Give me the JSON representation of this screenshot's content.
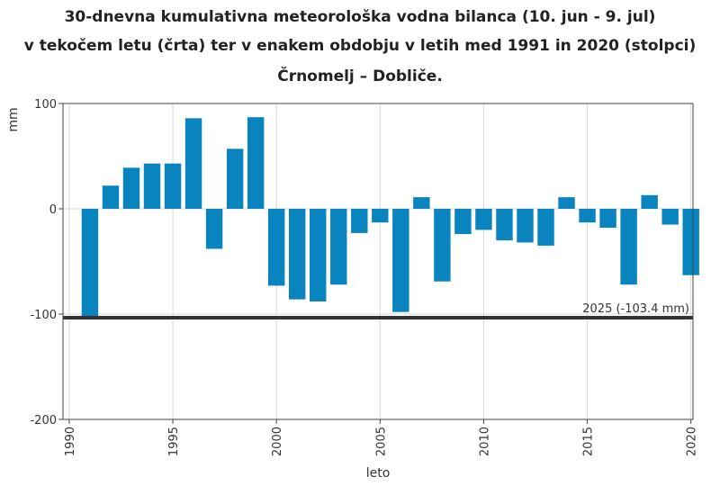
{
  "chart_data": {
    "type": "bar",
    "title": [
      "30-dnevna kumulativna meteorološka vodna bilanca (10. jun - 9. jul)",
      "v tekočem letu (črta) ter v enakem obdobju v letih med 1991 in 2020 (stolpci)",
      "Črnomelj – Dobliče."
    ],
    "xlabel": "leto",
    "ylabel": "mm",
    "xlim": [
      1989.7,
      2020.1
    ],
    "ylim": [
      -200,
      100
    ],
    "x_ticks": [
      "1990",
      "1995",
      "2000",
      "2005",
      "2010",
      "2015",
      "2020"
    ],
    "y_ticks": [
      "100",
      "0",
      "-100",
      "-200"
    ],
    "grid": true,
    "bar_color": "#0a84bf",
    "line_color": "#333333",
    "years": [
      1991,
      1992,
      1993,
      1994,
      1995,
      1996,
      1997,
      1998,
      1999,
      2000,
      2001,
      2002,
      2003,
      2004,
      2005,
      2006,
      2007,
      2008,
      2009,
      2010,
      2011,
      2012,
      2013,
      2014,
      2015,
      2016,
      2017,
      2018,
      2019,
      2020
    ],
    "values": [
      -102,
      22,
      39,
      43,
      43,
      86,
      -38,
      57,
      87,
      -73,
      -86,
      -88,
      -72,
      -23,
      -13,
      -98,
      11,
      -69,
      -24,
      -20,
      -30,
      -32,
      -35,
      11,
      -13,
      -18,
      -72,
      13,
      -15,
      -63
    ],
    "reference_line": {
      "value": -103.4,
      "label": "2025 (-103.4 mm)"
    }
  }
}
